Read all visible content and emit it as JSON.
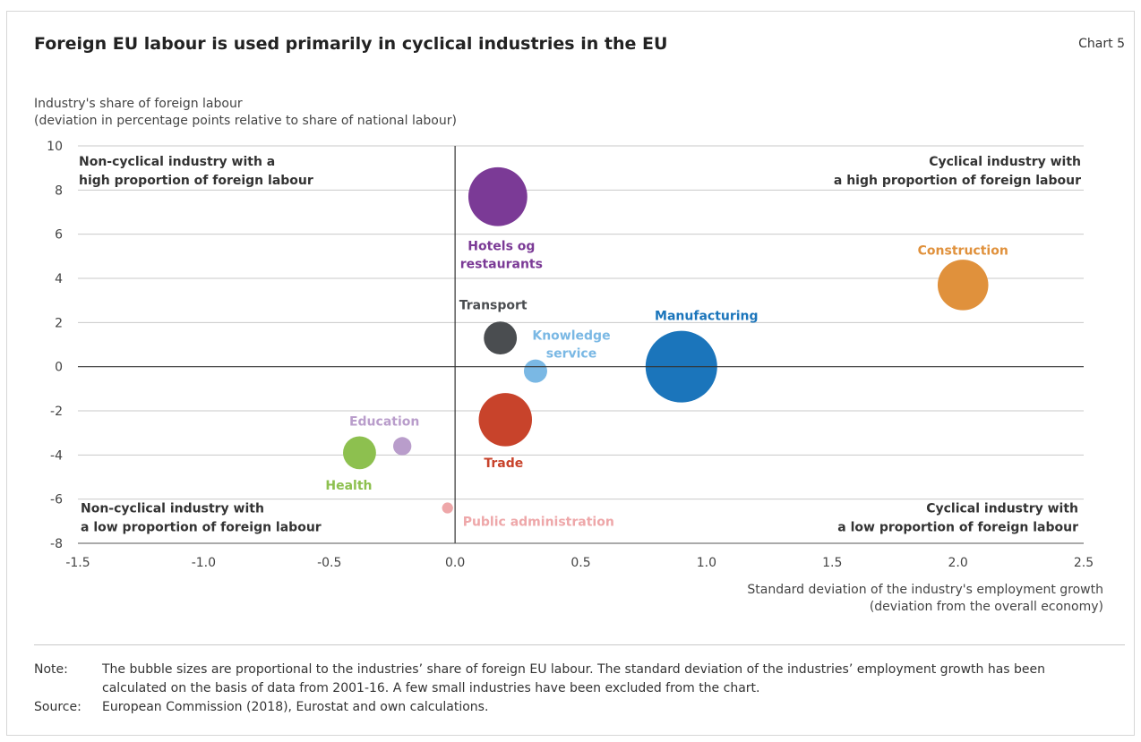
{
  "header": {
    "title": "Foreign EU labour is used primarily in cyclical industries in the EU",
    "chart_number": "Chart 5"
  },
  "chart_data": {
    "type": "scatter",
    "title": "Foreign EU labour is used primarily in cyclical industries in the EU",
    "ylabel_lines": [
      "Industry's share of foreign labour",
      "(deviation in percentage points relative to share of national labour)"
    ],
    "xlabel_lines": [
      "Standard deviation of the industry's employment growth",
      "(deviation from the overall economy)"
    ],
    "xlim": [
      -1.5,
      2.5
    ],
    "ylim": [
      -8,
      10
    ],
    "xticks": [
      -1.5,
      -1.0,
      -0.5,
      0.0,
      0.5,
      1.0,
      1.5,
      2.0,
      2.5
    ],
    "xtick_labels": [
      "-1.5",
      "-1.0",
      "-0.5",
      "0.0",
      "0.5",
      "1.0",
      "1.5",
      "2.0",
      "2.5"
    ],
    "yticks": [
      -8,
      -6,
      -4,
      -2,
      0,
      2,
      4,
      6,
      8,
      10
    ],
    "ytick_labels": [
      "-8",
      "-6",
      "-4",
      "-2",
      "0",
      "2",
      "4",
      "6",
      "8",
      "10"
    ],
    "grid": "horizontal",
    "bubble_size_meaning": "share of foreign EU labour",
    "points": [
      {
        "name": "Hotels og restaurants",
        "label_lines": [
          "Hotels og",
          "restaurants"
        ],
        "x": 0.17,
        "y": 7.7,
        "size": 11.5,
        "color": "#7b3a96"
      },
      {
        "name": "Construction",
        "label_lines": [
          "Construction"
        ],
        "x": 2.02,
        "y": 3.7,
        "size": 8.5,
        "color": "#e0913c"
      },
      {
        "name": "Transport",
        "label_lines": [
          "Transport"
        ],
        "x": 0.18,
        "y": 1.3,
        "size": 3.6,
        "color": "#4a4d50"
      },
      {
        "name": "Knowledge service",
        "label_lines": [
          "Knowledge",
          "service"
        ],
        "x": 0.32,
        "y": -0.2,
        "size": 1.8,
        "color": "#7ab8e4"
      },
      {
        "name": "Manufacturing",
        "label_lines": [
          "Manufacturing"
        ],
        "x": 0.9,
        "y": 0.0,
        "size": 17.0,
        "color": "#1b75bb"
      },
      {
        "name": "Trade",
        "label_lines": [
          "Trade"
        ],
        "x": 0.2,
        "y": -2.4,
        "size": 9.4,
        "color": "#c8432b"
      },
      {
        "name": "Education",
        "label_lines": [
          "Education"
        ],
        "x": -0.21,
        "y": -3.6,
        "size": 1.1,
        "color": "#b99dcb"
      },
      {
        "name": "Health",
        "label_lines": [
          "Health"
        ],
        "x": -0.38,
        "y": -3.9,
        "size": 3.6,
        "color": "#8dc04f"
      },
      {
        "name": "Public administration",
        "label_lines": [
          "Public administration"
        ],
        "x": -0.03,
        "y": -6.4,
        "size": 0.4,
        "color": "#eea7a9"
      }
    ],
    "quadrant_labels": [
      {
        "position": "top-left",
        "lines": [
          "Non-cyclical industry with a",
          "high proportion of foreign labour"
        ]
      },
      {
        "position": "top-right",
        "lines": [
          "Cyclical industry with",
          "a high proportion of foreign labour"
        ]
      },
      {
        "position": "bottom-left",
        "lines": [
          "Non-cyclical industry with",
          "a low proportion of foreign labour"
        ]
      },
      {
        "position": "bottom-right",
        "lines": [
          "Cyclical industry with",
          "a low proportion of foreign labour"
        ]
      }
    ]
  },
  "footer": {
    "note_label": "Note:",
    "note_text": "The bubble sizes are proportional to the industries’ share of foreign EU labour. The standard deviation of the industries’ employment growth has been calculated on the basis of data from 2001-16. A few small industries have been excluded from the chart.",
    "source_label": "Source:",
    "source_text": "European Commission (2018), Eurostat and own calculations."
  }
}
